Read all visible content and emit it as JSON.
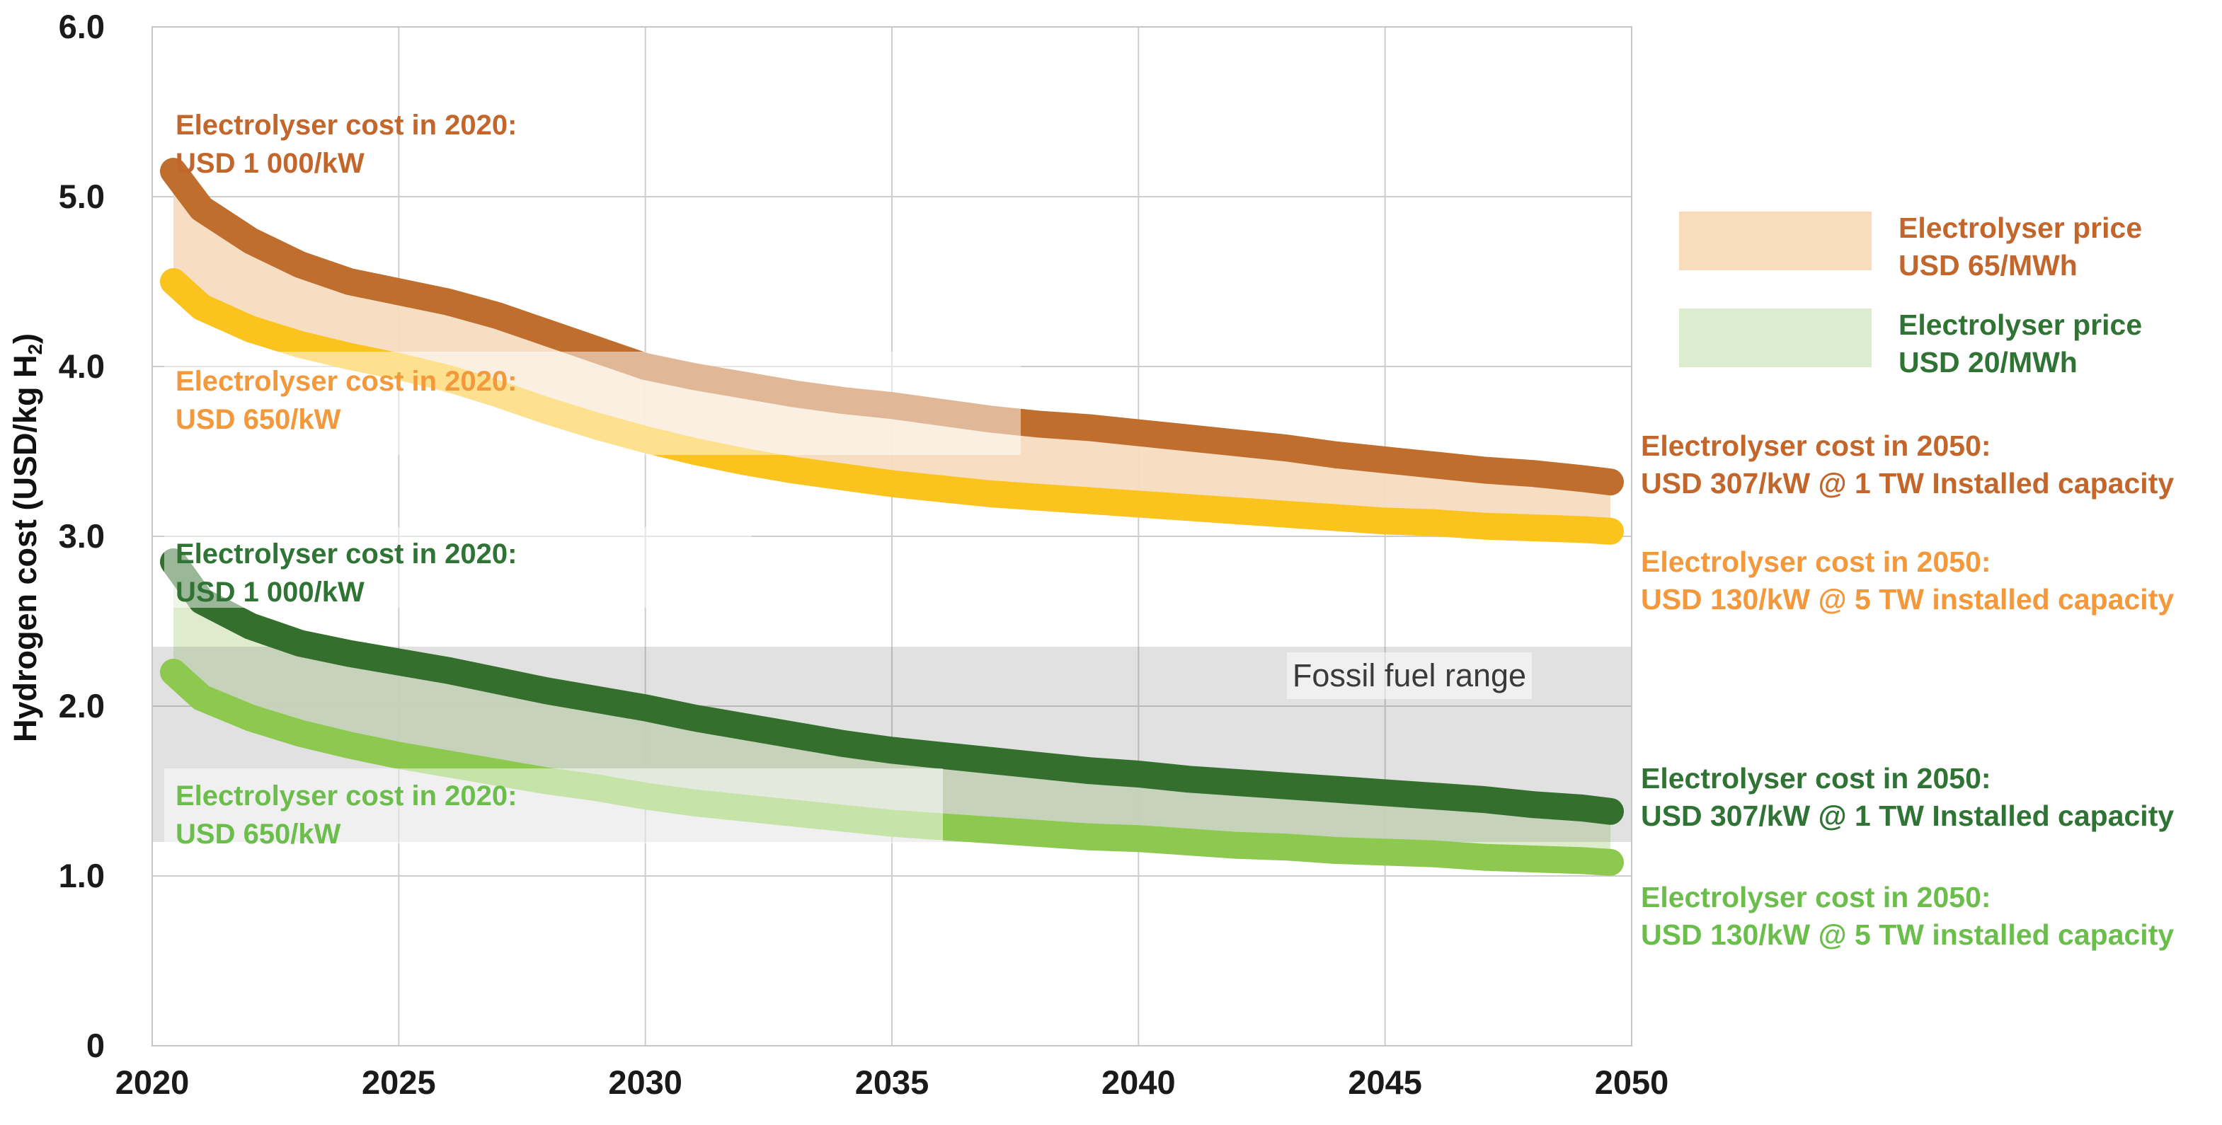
{
  "y_axis": {
    "title": {
      "pre": "Hydrogen cost (USD/kg H",
      "sub": "2",
      "post": ")"
    },
    "ticks": [
      "6.0",
      "5.0",
      "4.0",
      "3.0",
      "2.0",
      "1.0",
      "0"
    ]
  },
  "x_axis": {
    "ticks": [
      "2020",
      "2025",
      "2030",
      "2035",
      "2040",
      "2045",
      "2050"
    ]
  },
  "plot_annotations": {
    "orange_1000": {
      "line1": "Electrolyser cost in 2020:",
      "line2": "USD 1 000/kW"
    },
    "orange_650": {
      "line1": "Electrolyser cost in 2020:",
      "line2": "USD 650/kW"
    },
    "green_1000": {
      "line1": "Electrolyser cost in 2020:",
      "line2": "USD 1 000/kW"
    },
    "green_650": {
      "line1": "Electrolyser cost in 2020:",
      "line2": "USD 650/kW"
    },
    "fossil": {
      "label": "Fossil fuel range"
    }
  },
  "legend": {
    "position": "right",
    "items": [
      {
        "line1": "Electrolyser price",
        "line2": "USD 65/MWh",
        "swatch_color": "#f9dcbc",
        "text_color": "#c2662b"
      },
      {
        "line1": "Electrolyser price",
        "line2": "USD 20/MWh",
        "swatch_color": "#dcecce",
        "text_color": "#2f7434"
      }
    ]
  },
  "right_annotations": [
    {
      "line1": "Electrolyser cost in 2050:",
      "line2": "USD 307/kW @ 1 TW Installed capacity",
      "color": "#c2662b"
    },
    {
      "line1": "Electrolyser cost in 2050:",
      "line2": "USD 130/kW @ 5 TW installed capacity",
      "color": "#f4983c"
    },
    {
      "line1": "Electrolyser cost in 2050:",
      "line2": "USD 307/kW @ 1 TW Installed capacity",
      "color": "#2f7434"
    },
    {
      "line1": "Electrolyser cost in 2050:",
      "line2": "USD 130/kW @ 5 TW installed capacity",
      "color": "#6cbe4c"
    }
  ],
  "chart_data": {
    "type": "line",
    "title": "",
    "xlabel": "",
    "ylabel": "Hydrogen cost (USD/kg H2)",
    "xlim": [
      2020,
      2050
    ],
    "ylim": [
      0,
      6.0
    ],
    "grid": true,
    "x": [
      2020,
      2021,
      2022,
      2023,
      2024,
      2025,
      2026,
      2027,
      2028,
      2029,
      2030,
      2031,
      2032,
      2033,
      2034,
      2035,
      2036,
      2037,
      2038,
      2039,
      2040,
      2041,
      2042,
      2043,
      2044,
      2045,
      2046,
      2047,
      2048,
      2049,
      2050
    ],
    "series": [
      {
        "id": "elec65-1000",
        "name": "Electrolyser cost 2020 USD 1 000/kW, electricity USD 65/MWh (2050: USD 307/kW @ 1 TW)",
        "color": "#c06e2e",
        "values": [
          5.15,
          4.93,
          4.74,
          4.6,
          4.5,
          4.44,
          4.38,
          4.3,
          4.2,
          4.1,
          4.0,
          3.94,
          3.89,
          3.84,
          3.8,
          3.77,
          3.73,
          3.69,
          3.66,
          3.64,
          3.61,
          3.58,
          3.55,
          3.52,
          3.48,
          3.45,
          3.42,
          3.39,
          3.37,
          3.34,
          3.32
        ]
      },
      {
        "id": "elec65-650",
        "name": "Electrolyser cost 2020 USD 650/kW, electricity USD 65/MWh (2050: USD 130/kW @ 5 TW)",
        "color": "#fac31e",
        "values": [
          4.5,
          4.35,
          4.22,
          4.13,
          4.06,
          4.0,
          3.93,
          3.84,
          3.74,
          3.65,
          3.57,
          3.5,
          3.44,
          3.39,
          3.35,
          3.31,
          3.28,
          3.25,
          3.23,
          3.21,
          3.19,
          3.17,
          3.15,
          3.13,
          3.11,
          3.09,
          3.08,
          3.06,
          3.05,
          3.04,
          3.03
        ]
      },
      {
        "id": "elec20-1000",
        "name": "Electrolyser cost 2020 USD 1 000/kW, electricity USD 20/MWh (2050: USD 307/kW @ 1 TW)",
        "color": "#356f2e",
        "values": [
          2.85,
          2.62,
          2.47,
          2.37,
          2.31,
          2.26,
          2.21,
          2.15,
          2.09,
          2.04,
          1.99,
          1.93,
          1.88,
          1.83,
          1.78,
          1.74,
          1.71,
          1.68,
          1.65,
          1.62,
          1.6,
          1.57,
          1.55,
          1.53,
          1.51,
          1.49,
          1.47,
          1.45,
          1.42,
          1.4,
          1.38
        ]
      },
      {
        "id": "elec20-650",
        "name": "Electrolyser cost 2020 USD 650/kW, electricity USD 20/MWh (2050: USD 130/kW @ 5 TW)",
        "color": "#8dc84f",
        "values": [
          2.2,
          2.05,
          1.93,
          1.84,
          1.77,
          1.71,
          1.66,
          1.61,
          1.56,
          1.52,
          1.47,
          1.43,
          1.4,
          1.37,
          1.34,
          1.31,
          1.29,
          1.27,
          1.25,
          1.23,
          1.22,
          1.2,
          1.18,
          1.17,
          1.15,
          1.14,
          1.13,
          1.11,
          1.1,
          1.09,
          1.08
        ]
      }
    ],
    "bands": [
      {
        "between": [
          "elec65-1000",
          "elec65-650"
        ],
        "color": "#f6dcbe",
        "label": "Electrolyser price USD 65/MWh"
      },
      {
        "between": [
          "elec20-1000",
          "elec20-650"
        ],
        "color": "#dcebc9",
        "label": "Electrolyser price USD 20/MWh"
      }
    ],
    "fossil_fuel_range": {
      "low": 1.2,
      "high": 2.35,
      "label": "Fossil fuel range",
      "color": "#e3e3e3"
    }
  },
  "colors": {
    "dark_orange_text": "#c2662b",
    "light_orange_text": "#f4983c",
    "dark_green_text": "#2f7434",
    "light_green_text": "#6cbe4c",
    "gridline": "#cdcdcd",
    "tick_text": "#1a1a1a",
    "fossil_text": "#3a3a3a"
  }
}
